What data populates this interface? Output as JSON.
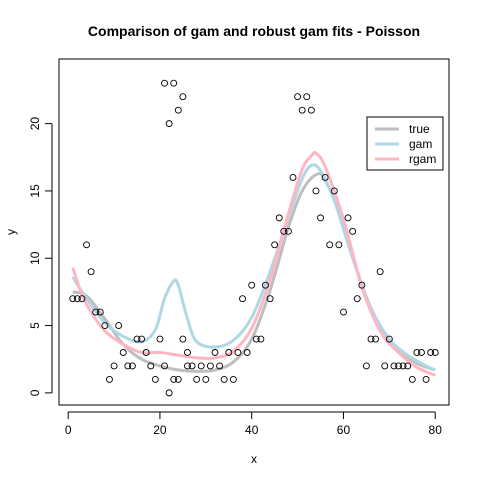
{
  "chart_data": {
    "type": "scatter",
    "title": "Comparison of gam and robust gam fits - Poisson",
    "xlabel": "x",
    "ylabel": "y",
    "xlim": [
      -2,
      83
    ],
    "ylim": [
      -0.9,
      24.8
    ],
    "xticks": [
      0,
      20,
      40,
      60,
      80
    ],
    "yticks": [
      0,
      5,
      10,
      15,
      20
    ],
    "grid": false,
    "legend_position": "top-right",
    "points": {
      "x": [
        1,
        2,
        3,
        4,
        5,
        6,
        7,
        8,
        9,
        10,
        11,
        12,
        13,
        14,
        15,
        16,
        17,
        18,
        19,
        20,
        21,
        22,
        23,
        24,
        25,
        26,
        27,
        28,
        29,
        30,
        31,
        32,
        33,
        34,
        35,
        36,
        37,
        38,
        39,
        40,
        41,
        42,
        43,
        44,
        45,
        46,
        47,
        48,
        49,
        50,
        51,
        52,
        53,
        54,
        55,
        56,
        57,
        58,
        59,
        60,
        61,
        62,
        63,
        64,
        65,
        66,
        67,
        68,
        69,
        70,
        71,
        72,
        73,
        74,
        75,
        76,
        77,
        78,
        79,
        80,
        21,
        22,
        23,
        24,
        25,
        26
      ],
      "y": [
        7,
        7,
        7,
        11,
        9,
        6,
        6,
        5,
        1,
        2,
        5,
        3,
        2,
        2,
        4,
        4,
        3,
        2,
        1,
        4,
        2,
        0,
        1,
        1,
        4,
        2,
        2,
        1,
        2,
        1,
        2,
        3,
        2,
        1,
        3,
        1,
        3,
        7,
        3,
        8,
        4,
        4,
        8,
        7,
        11,
        13,
        12,
        12,
        16,
        22,
        21,
        22,
        21,
        15,
        13,
        16,
        11,
        15,
        11,
        6,
        13,
        12,
        7,
        8,
        2,
        4,
        4,
        9,
        2,
        4,
        2,
        2,
        2,
        2,
        1,
        3,
        3,
        1,
        3,
        3,
        23,
        20,
        23,
        21,
        22,
        3
      ],
      "style": "open-circle"
    },
    "series": [
      {
        "name": "true",
        "color": "#bebebe",
        "x": [
          1,
          4,
          8,
          12,
          16,
          20,
          24,
          28,
          32,
          36,
          40,
          44,
          48,
          51,
          54,
          56,
          60,
          64,
          68,
          72,
          76,
          80
        ],
        "y": [
          7.5,
          7.2,
          5.5,
          3.6,
          2.5,
          2.0,
          1.7,
          1.6,
          1.7,
          2.3,
          4.0,
          7.6,
          12.3,
          15.0,
          16.2,
          15.8,
          12.5,
          8.0,
          4.9,
          3.2,
          2.2,
          1.7
        ]
      },
      {
        "name": "gam",
        "color": "#add8e6",
        "x": [
          1,
          4,
          8,
          12,
          16,
          19,
          21,
          23,
          24,
          26,
          28,
          32,
          36,
          40,
          44,
          48,
          51,
          53,
          55,
          58,
          62,
          66,
          70,
          74,
          78,
          80
        ],
        "y": [
          8.6,
          7.0,
          5.2,
          4.2,
          3.8,
          4.7,
          7.0,
          8.3,
          8.0,
          5.5,
          3.8,
          3.4,
          3.9,
          5.6,
          9.0,
          13.0,
          15.9,
          16.9,
          16.5,
          14.3,
          10.0,
          6.3,
          4.0,
          2.8,
          2.0,
          1.7
        ]
      },
      {
        "name": "rgam",
        "color": "#ffb6c1",
        "x": [
          1,
          3,
          5,
          8,
          12,
          16,
          20,
          24,
          28,
          32,
          36,
          40,
          44,
          48,
          51,
          53,
          54,
          56,
          60,
          64,
          68,
          72,
          76,
          80
        ],
        "y": [
          9.3,
          7.3,
          6.0,
          4.6,
          3.6,
          3.0,
          3.0,
          2.8,
          2.6,
          2.6,
          3.1,
          4.8,
          8.4,
          13.3,
          16.6,
          17.6,
          17.8,
          16.8,
          12.9,
          7.9,
          4.6,
          3.0,
          1.9,
          1.3
        ]
      }
    ],
    "legend": [
      "true",
      "gam",
      "rgam"
    ]
  }
}
